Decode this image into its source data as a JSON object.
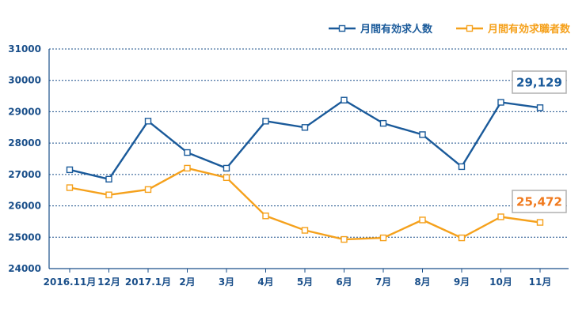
{
  "chart_data": {
    "type": "line",
    "categories": [
      "2016.11月",
      "12月",
      "2017.1月",
      "2月",
      "3月",
      "4月",
      "5月",
      "6月",
      "7月",
      "8月",
      "9月",
      "10月",
      "11月"
    ],
    "series": [
      {
        "name": "月間有効求人数",
        "color": "#1a5a9a",
        "values": [
          27150,
          26850,
          28700,
          27700,
          27200,
          28700,
          28500,
          29370,
          28630,
          28270,
          27250,
          29300,
          29129
        ]
      },
      {
        "name": "月間有効求職者数",
        "color": "#f5a11c",
        "values": [
          26580,
          26350,
          26520,
          27200,
          26900,
          25680,
          25220,
          24930,
          24980,
          25550,
          24980,
          25650,
          25472
        ]
      }
    ],
    "ylim": [
      24000,
      31000
    ],
    "yticks": [
      24000,
      25000,
      26000,
      27000,
      28000,
      29000,
      30000,
      31000
    ],
    "grid": true,
    "legend_position": "top-right",
    "annotations": [
      {
        "series": 0,
        "text": "29,129",
        "color": "#1a5a9a"
      },
      {
        "series": 1,
        "text": "25,472",
        "color": "#f07a1e"
      }
    ]
  }
}
